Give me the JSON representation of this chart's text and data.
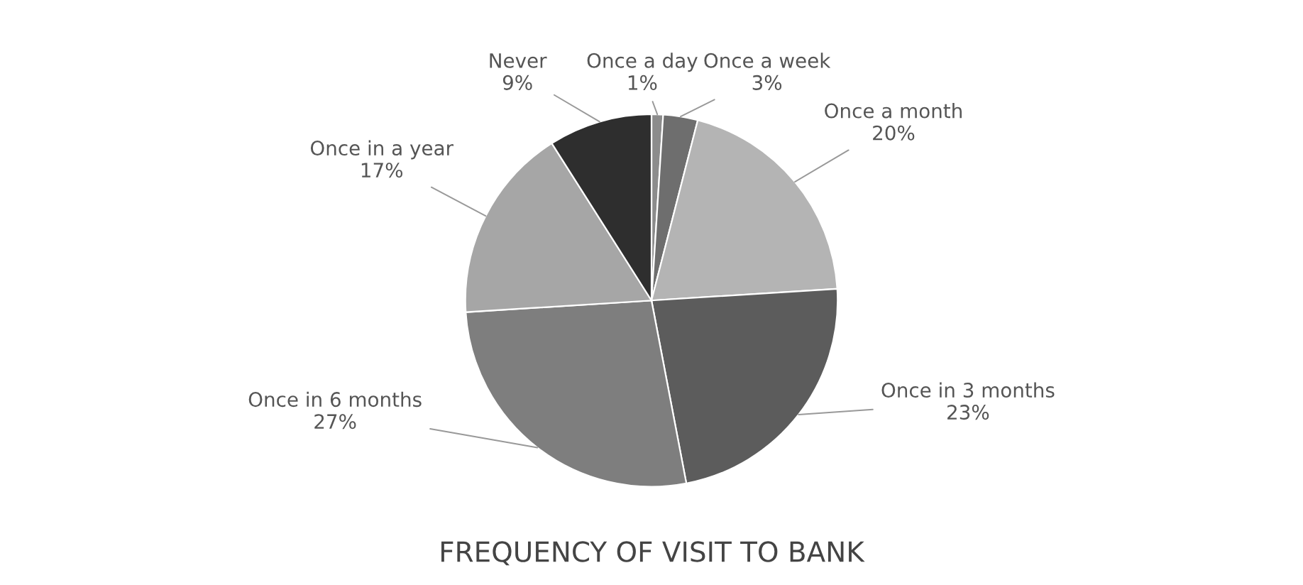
{
  "chart_data": {
    "type": "pie",
    "title": "FREQUENCY OF VISIT TO BANK",
    "categories": [
      "Once a day",
      "Once a week",
      "Once a month",
      "Once in 3 months",
      "Once in 6 months",
      "Once in a year",
      "Never"
    ],
    "values": [
      1,
      3,
      20,
      23,
      27,
      17,
      9
    ],
    "value_labels": [
      "1%",
      "3%",
      "20%",
      "23%",
      "27%",
      "17%",
      "9%"
    ],
    "colors": [
      "#8c8c8c",
      "#6e6e6e",
      "#b4b4b4",
      "#5c5c5c",
      "#7e7e7e",
      "#a6a6a6",
      "#2e2e2e"
    ],
    "legend": false
  }
}
